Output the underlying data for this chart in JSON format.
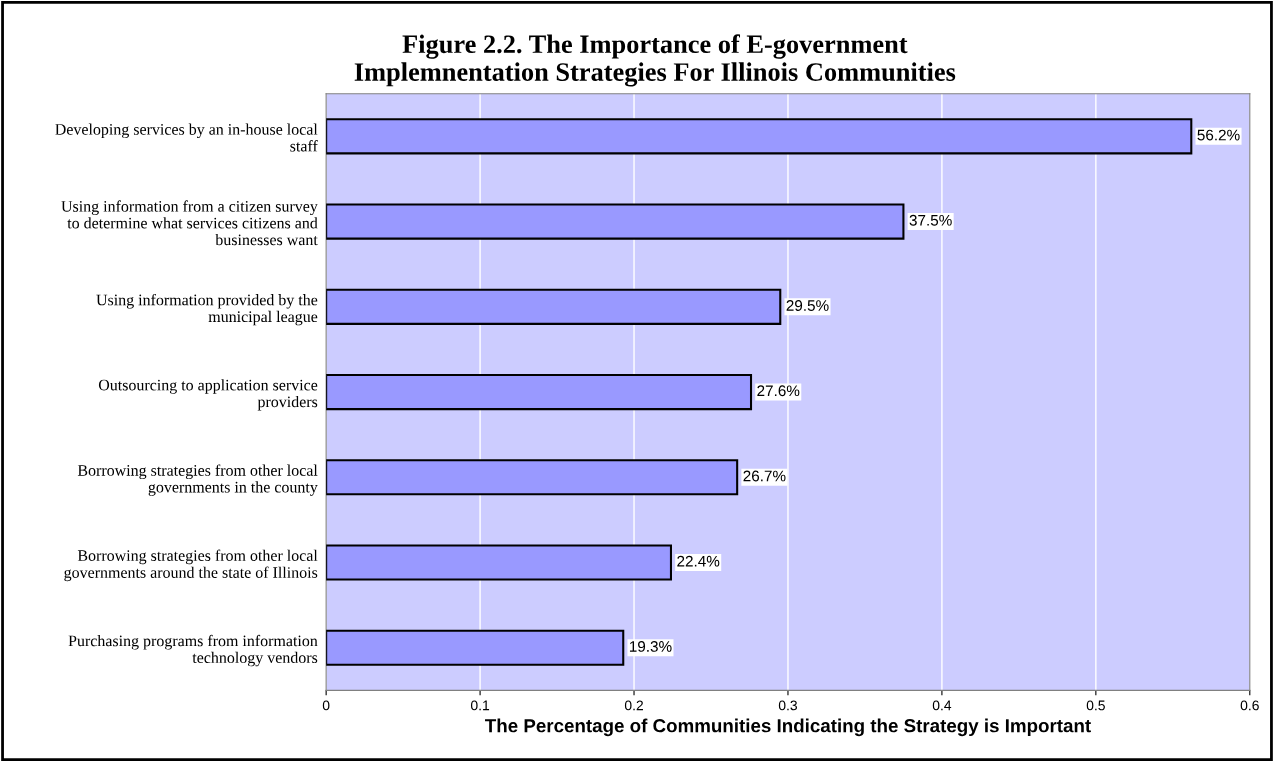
{
  "chart_data": {
    "type": "bar",
    "orientation": "horizontal",
    "title": "Figure 2.2. The Importance of E-government\nImplemnentation Strategies For Illinois Communities",
    "xlabel": "The Percentage of Communities Indicating the Strategy is Important",
    "categories": [
      "Developing services by an in-house local\nstaff",
      "Using information from a citizen survey\nto determine what services citizens and\nbusinesses want",
      "Using information provided by the\nmunicipal league",
      "Outsourcing to application service\nproviders",
      "Borrowing strategies from other local\ngovernments in the county",
      "Borrowing strategies from other local\ngovernments around the state of Illinois",
      "Purchasing programs from information\ntechnology vendors"
    ],
    "values": [
      0.562,
      0.375,
      0.295,
      0.276,
      0.267,
      0.224,
      0.193
    ],
    "value_labels": [
      "56.2%",
      "37.5%",
      "29.5%",
      "27.6%",
      "26.7%",
      "22.4%",
      "19.3%"
    ],
    "color": "#9999ff",
    "xlim": [
      0,
      0.6
    ],
    "xticks": [
      0,
      0.1,
      0.2,
      0.3,
      0.4,
      0.5,
      0.6
    ],
    "grid": "x",
    "legend": false
  }
}
